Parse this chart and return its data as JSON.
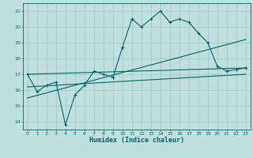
{
  "xlabel": "Humidex (Indice chaleur)",
  "bg_color": "#c0e0e0",
  "grid_color": "#a0cccc",
  "line_color": "#006666",
  "xlim": [
    -0.5,
    23.5
  ],
  "ylim": [
    13.5,
    21.5
  ],
  "yticks": [
    14,
    15,
    16,
    17,
    18,
    19,
    20,
    21
  ],
  "xticks": [
    0,
    1,
    2,
    3,
    4,
    5,
    6,
    7,
    8,
    9,
    10,
    11,
    12,
    13,
    14,
    15,
    16,
    17,
    18,
    19,
    20,
    21,
    22,
    23
  ],
  "series1_x": [
    0,
    1,
    2,
    3,
    4,
    5,
    6,
    7,
    8,
    9,
    10,
    11,
    12,
    13,
    14,
    15,
    16,
    17,
    18,
    19,
    20,
    21,
    22,
    23
  ],
  "series1_y": [
    17.0,
    15.9,
    16.3,
    16.5,
    13.8,
    15.7,
    16.3,
    17.2,
    17.0,
    16.8,
    18.7,
    20.5,
    20.0,
    20.5,
    21.0,
    20.3,
    20.5,
    20.3,
    19.6,
    19.0,
    17.5,
    17.2,
    17.3,
    17.4
  ],
  "trend1_x": [
    0,
    23
  ],
  "trend1_y": [
    17.0,
    17.4
  ],
  "trend2_x": [
    0,
    23
  ],
  "trend2_y": [
    15.5,
    19.2
  ],
  "trend3_x": [
    0,
    23
  ],
  "trend3_y": [
    16.2,
    17.0
  ]
}
